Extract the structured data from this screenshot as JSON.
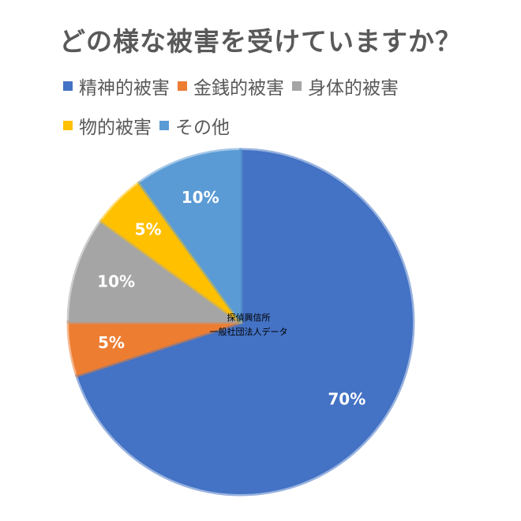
{
  "chart_data": {
    "type": "pie",
    "title": "どの様な被害を受けていますか？",
    "categories": [
      "精神的被害",
      "金銭的被害",
      "身体的被害",
      "物的被害",
      "その他"
    ],
    "values": [
      70,
      5,
      10,
      5,
      10
    ],
    "labels": [
      "70%",
      "5%",
      "10%",
      "5%",
      "10%"
    ],
    "colors": [
      "#4472C4",
      "#ED7D31",
      "#A5A5A5",
      "#FFC000",
      "#5B9BD5"
    ],
    "legend_position": "top",
    "annotation": [
      "探偵興信所",
      "一般社団法人データ"
    ]
  }
}
